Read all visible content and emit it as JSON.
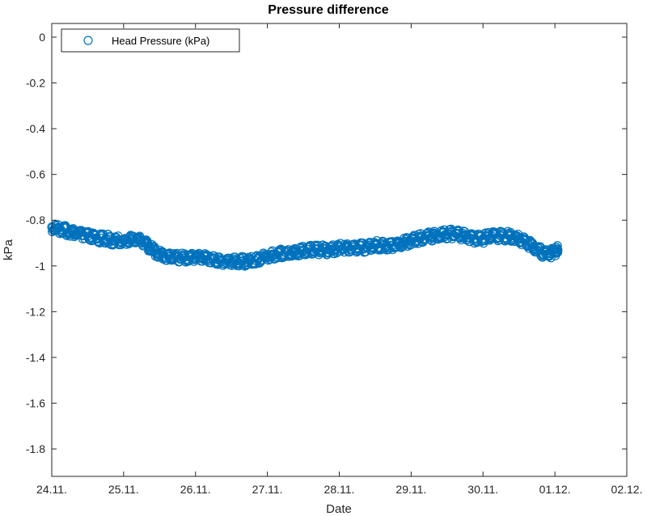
{
  "chart_data": {
    "type": "scatter",
    "title": "Pressure difference",
    "xlabel": "Date",
    "ylabel": "kPa",
    "x_ticks": [
      "24.11.",
      "25.11.",
      "26.11.",
      "27.11.",
      "28.11.",
      "29.11.",
      "30.11.",
      "01.12.",
      "02.12."
    ],
    "y_ticks": [
      "0",
      "-0.2",
      "-0.4",
      "-0.6",
      "-0.8",
      "-1",
      "-1.2",
      "-1.4",
      "-1.6",
      "-1.8"
    ],
    "xlim": [
      "24.11.",
      "02.12."
    ],
    "ylim": [
      -1.92,
      0.06
    ],
    "grid": false,
    "legend_position": "top-left",
    "series": [
      {
        "name": "Head Pressure (kPa)",
        "color": "#0072BD",
        "marker": "circle-open",
        "x": [
          "24.11. 00:00",
          "24.11. 03:00",
          "24.11. 06:00",
          "24.11. 09:00",
          "24.11. 12:00",
          "24.11. 15:00",
          "24.11. 18:00",
          "24.11. 21:00",
          "25.11. 00:00",
          "25.11. 03:00",
          "25.11. 06:00",
          "25.11. 09:00",
          "25.11. 12:00",
          "25.11. 15:00",
          "25.11. 18:00",
          "25.11. 21:00",
          "26.11. 00:00",
          "26.11. 03:00",
          "26.11. 06:00",
          "26.11. 09:00",
          "26.11. 12:00",
          "26.11. 15:00",
          "26.11. 18:00",
          "26.11. 21:00",
          "27.11. 00:00",
          "27.11. 03:00",
          "27.11. 06:00",
          "27.11. 09:00",
          "27.11. 12:00",
          "27.11. 15:00",
          "27.11. 18:00",
          "27.11. 21:00",
          "28.11. 00:00",
          "28.11. 03:00",
          "28.11. 06:00",
          "28.11. 09:00",
          "28.11. 12:00",
          "28.11. 15:00",
          "28.11. 18:00",
          "28.11. 21:00",
          "29.11. 00:00",
          "29.11. 03:00",
          "29.11. 06:00",
          "29.11. 09:00",
          "29.11. 12:00",
          "29.11. 15:00",
          "29.11. 18:00",
          "29.11. 21:00",
          "30.11. 00:00",
          "30.11. 03:00",
          "30.11. 06:00",
          "30.11. 09:00",
          "30.11. 12:00",
          "30.11. 15:00",
          "30.11. 18:00",
          "30.11. 21:00",
          "01.12. 00:00",
          "01.12. 01:00"
        ],
        "y": [
          -0.83,
          -0.84,
          -0.85,
          -0.86,
          -0.87,
          -0.88,
          -0.88,
          -0.89,
          -0.89,
          -0.88,
          -0.89,
          -0.92,
          -0.95,
          -0.96,
          -0.96,
          -0.97,
          -0.96,
          -0.96,
          -0.97,
          -0.98,
          -0.98,
          -0.98,
          -0.98,
          -0.97,
          -0.96,
          -0.95,
          -0.94,
          -0.94,
          -0.93,
          -0.93,
          -0.93,
          -0.93,
          -0.92,
          -0.92,
          -0.92,
          -0.92,
          -0.91,
          -0.91,
          -0.91,
          -0.9,
          -0.89,
          -0.88,
          -0.87,
          -0.87,
          -0.86,
          -0.86,
          -0.87,
          -0.88,
          -0.88,
          -0.87,
          -0.87,
          -0.87,
          -0.88,
          -0.9,
          -0.93,
          -0.95,
          -0.94,
          -0.93
        ]
      }
    ]
  }
}
